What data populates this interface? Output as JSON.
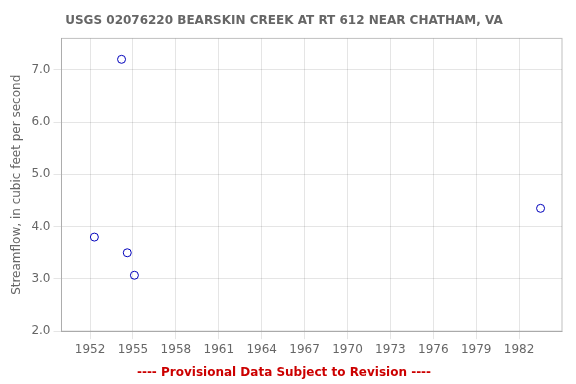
{
  "chart_data": {
    "type": "scatter",
    "title": "USGS 02076220 BEARSKIN CREEK AT RT 612 NEAR CHATHAM, VA",
    "ylabel": "Streamflow, in cubic feet per second",
    "x": [
      1952.3,
      1954.2,
      1954.6,
      1955.1,
      1983.5
    ],
    "values": [
      3.8,
      7.2,
      3.5,
      3.07,
      4.35
    ],
    "color": "#0000bb",
    "marker": "o",
    "xlim": [
      1950,
      1985
    ],
    "ylim": [
      2.0,
      7.6
    ],
    "xticks": [
      1952,
      1955,
      1958,
      1961,
      1964,
      1967,
      1970,
      1973,
      1976,
      1979,
      1982
    ],
    "yticks": [
      {
        "value": 2.0,
        "label": "2.0"
      },
      {
        "value": 3.0,
        "label": "3.0"
      },
      {
        "value": 4.0,
        "label": "4.0"
      },
      {
        "value": 5.0,
        "label": "5.0"
      },
      {
        "value": 6.0,
        "label": "6.0"
      },
      {
        "value": 7.0,
        "label": "7.0"
      }
    ],
    "grid": true,
    "annotations": [
      {
        "text": "---- Provisional Data Subject to Revision ----",
        "color": "#cc0000"
      }
    ]
  }
}
